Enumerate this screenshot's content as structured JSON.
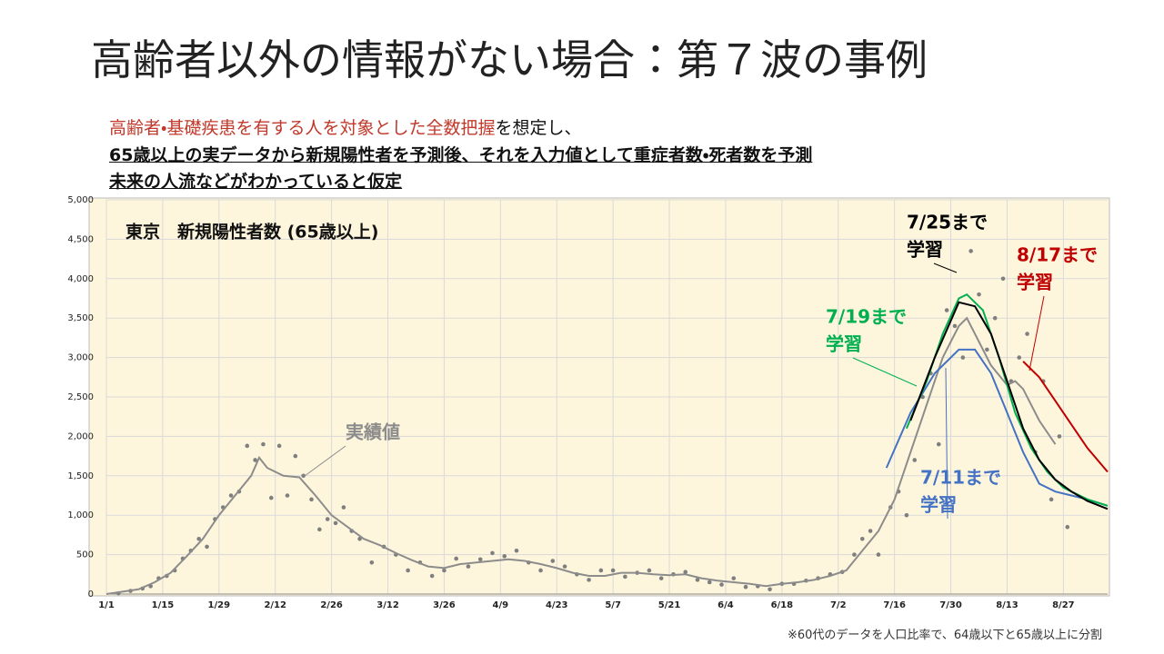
{
  "header": {
    "title": "高齢者以外の情報がない場合：第７波の事例",
    "line1_red": "高齢者・基礎疾患を有する人を対象とした全数把握",
    "line1_rest": "を想定し、",
    "line2": "65歳以上の実データから新規陽性者を予測後、それを入力値として重症者数・死者数を予測",
    "line3": "未来の人流などがわかっていると仮定"
  },
  "footnote": "※60代のデータを人口比率で、64歳以下と65歳以上に分割",
  "chart_data": {
    "type": "line",
    "title": "東京　新規陽性者数 (65歳以上)",
    "xlim": [
      0,
      249
    ],
    "ylim": [
      0,
      5000
    ],
    "xticks": [
      {
        "value": 0,
        "label": "1/1"
      },
      {
        "value": 14,
        "label": "1/15"
      },
      {
        "value": 28,
        "label": "1/29"
      },
      {
        "value": 42,
        "label": "2/12"
      },
      {
        "value": 56,
        "label": "2/26"
      },
      {
        "value": 70,
        "label": "3/12"
      },
      {
        "value": 84,
        "label": "3/26"
      },
      {
        "value": 98,
        "label": "4/9"
      },
      {
        "value": 112,
        "label": "4/23"
      },
      {
        "value": 126,
        "label": "5/7"
      },
      {
        "value": 140,
        "label": "5/21"
      },
      {
        "value": 154,
        "label": "6/4"
      },
      {
        "value": 168,
        "label": "6/18"
      },
      {
        "value": 182,
        "label": "7/2"
      },
      {
        "value": 196,
        "label": "7/16"
      },
      {
        "value": 210,
        "label": "7/30"
      },
      {
        "value": 224,
        "label": "8/13"
      },
      {
        "value": 238,
        "label": "8/27"
      }
    ],
    "yticks": [
      0,
      500,
      {
        "value": 1000,
        "label": "1,000"
      },
      {
        "value": 1500,
        "label": "1,500"
      },
      {
        "value": 2000,
        "label": "2,000"
      },
      {
        "value": 2500,
        "label": "2,500"
      },
      {
        "value": 3000,
        "label": "3,000"
      },
      {
        "value": 3500,
        "label": "3,500"
      },
      {
        "value": 4000,
        "label": "4,000"
      },
      {
        "value": 4500,
        "label": "4,500"
      },
      {
        "value": 5000,
        "label": "5,000"
      }
    ],
    "grid": true,
    "series": [
      {
        "kind": "scatter",
        "color": "#7f7f7f",
        "x": [
          3,
          6,
          9,
          11,
          13,
          15,
          17,
          19,
          21,
          23,
          25,
          27,
          29,
          31,
          33,
          35,
          37,
          39,
          41,
          43,
          45,
          47,
          49,
          51,
          53,
          55,
          57,
          59,
          61,
          63,
          66,
          69,
          72,
          75,
          78,
          81,
          84,
          87,
          90,
          93,
          96,
          99,
          102,
          105,
          108,
          111,
          114,
          117,
          120,
          123,
          126,
          129,
          132,
          135,
          138,
          141,
          144,
          147,
          150,
          153,
          156,
          159,
          162,
          165,
          168,
          171,
          174,
          177,
          180,
          183,
          186,
          188,
          190,
          192,
          195,
          197,
          199,
          201,
          203,
          205,
          207,
          209,
          211,
          213,
          215,
          217,
          219,
          221,
          223,
          225,
          227,
          229,
          231,
          233,
          235,
          237,
          239
        ],
        "values": [
          10,
          40,
          70,
          100,
          200,
          230,
          300,
          450,
          550,
          700,
          600,
          950,
          1100,
          1250,
          1300,
          1880,
          1700,
          1900,
          1220,
          1880,
          1250,
          1750,
          1500,
          1200,
          820,
          950,
          900,
          1100,
          800,
          700,
          400,
          600,
          500,
          300,
          400,
          230,
          300,
          450,
          350,
          440,
          520,
          480,
          550,
          400,
          300,
          420,
          350,
          250,
          180,
          300,
          300,
          220,
          270,
          300,
          200,
          250,
          280,
          180,
          150,
          120,
          200,
          90,
          100,
          60,
          130,
          130,
          170,
          200,
          250,
          280,
          500,
          700,
          800,
          500,
          1100,
          1300,
          1000,
          1700,
          2500,
          2800,
          1900,
          3600,
          3400,
          3000,
          4350,
          3800,
          3100,
          3500,
          4000,
          2700,
          3000,
          3300,
          1800,
          2700,
          1200,
          2000,
          850
        ]
      },
      {
        "name": "実績値",
        "kind": "line",
        "color": "#8c8c8c",
        "x": [
          0,
          4,
          8,
          12,
          16,
          20,
          24,
          28,
          32,
          36,
          38,
          40,
          44,
          48,
          52,
          56,
          60,
          64,
          68,
          72,
          76,
          80,
          84,
          88,
          92,
          96,
          100,
          104,
          108,
          112,
          116,
          120,
          124,
          128,
          132,
          136,
          140,
          144,
          148,
          152,
          156,
          160,
          164,
          168,
          172,
          176,
          180,
          184,
          188,
          192,
          196,
          200,
          204,
          208,
          212,
          214,
          216,
          220,
          224,
          226,
          228,
          232,
          236
        ],
        "values": [
          0,
          30,
          60,
          150,
          270,
          480,
          700,
          1000,
          1250,
          1500,
          1730,
          1600,
          1500,
          1480,
          1250,
          1000,
          850,
          700,
          620,
          520,
          430,
          350,
          330,
          380,
          400,
          420,
          440,
          420,
          380,
          330,
          270,
          230,
          230,
          270,
          270,
          250,
          240,
          250,
          200,
          170,
          150,
          130,
          100,
          130,
          150,
          180,
          230,
          300,
          550,
          800,
          1200,
          1800,
          2400,
          3000,
          3400,
          3500,
          3300,
          2900,
          2650,
          2700,
          2600,
          2200,
          1900
        ]
      },
      {
        "name_lines": [
          "7/11まで",
          "学習"
        ],
        "kind": "line",
        "color": "#4472c4",
        "x": [
          194,
          200,
          206,
          212,
          216,
          220,
          224,
          228,
          232,
          236,
          240,
          244,
          249
        ],
        "values": [
          1600,
          2300,
          2800,
          3100,
          3100,
          2800,
          2300,
          1800,
          1400,
          1300,
          1250,
          1200,
          1120
        ]
      },
      {
        "name_lines": [
          "7/19まで",
          "学習"
        ],
        "kind": "line",
        "color": "#00b050",
        "x": [
          199,
          204,
          208,
          212,
          214,
          218,
          222,
          226,
          230,
          234,
          238,
          244,
          249
        ],
        "values": [
          2100,
          2700,
          3300,
          3750,
          3800,
          3600,
          3000,
          2300,
          1850,
          1550,
          1350,
          1200,
          1120
        ]
      },
      {
        "name_lines": [
          "7/25まで",
          "学習"
        ],
        "kind": "line",
        "color": "#000000",
        "x": [
          200,
          206,
          212,
          216,
          220,
          224,
          228,
          232,
          236,
          240,
          244,
          249
        ],
        "values": [
          2200,
          3000,
          3700,
          3650,
          3300,
          2700,
          2100,
          1700,
          1450,
          1300,
          1180,
          1080
        ]
      },
      {
        "name_lines": [
          "8/17まで",
          "学習"
        ],
        "kind": "line",
        "color": "#c00000",
        "x": [
          228,
          232,
          236,
          240,
          244,
          249
        ],
        "values": [
          2950,
          2750,
          2450,
          2150,
          1850,
          1550
        ]
      }
    ]
  }
}
